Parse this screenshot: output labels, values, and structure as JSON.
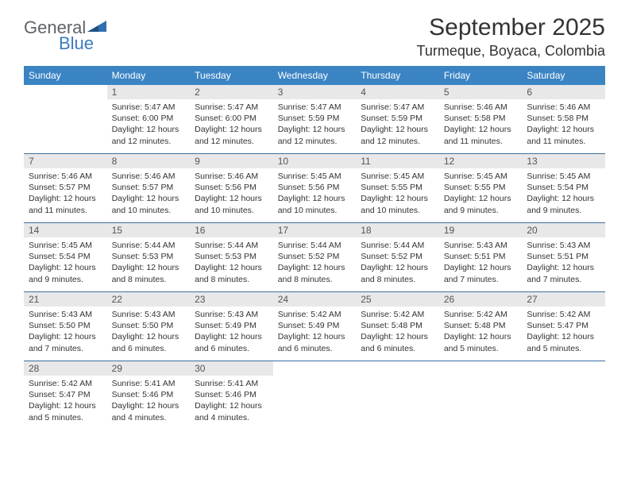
{
  "brand": {
    "word1": "General",
    "word2": "Blue"
  },
  "title": "September 2025",
  "location": "Turmeque, Boyaca, Colombia",
  "colors": {
    "header_bg": "#3b84c4",
    "header_text": "#ffffff",
    "row_divider": "#3b6fa0",
    "daynum_bg": "#e8e8e8",
    "text": "#333333",
    "brand_gray": "#5f6368",
    "brand_blue": "#3b7bbf"
  },
  "weekdays": [
    "Sunday",
    "Monday",
    "Tuesday",
    "Wednesday",
    "Thursday",
    "Friday",
    "Saturday"
  ],
  "first_weekday_index": 1,
  "days": [
    {
      "n": 1,
      "rise": "5:47 AM",
      "set": "6:00 PM",
      "dl": "12 hours and 12 minutes."
    },
    {
      "n": 2,
      "rise": "5:47 AM",
      "set": "6:00 PM",
      "dl": "12 hours and 12 minutes."
    },
    {
      "n": 3,
      "rise": "5:47 AM",
      "set": "5:59 PM",
      "dl": "12 hours and 12 minutes."
    },
    {
      "n": 4,
      "rise": "5:47 AM",
      "set": "5:59 PM",
      "dl": "12 hours and 12 minutes."
    },
    {
      "n": 5,
      "rise": "5:46 AM",
      "set": "5:58 PM",
      "dl": "12 hours and 11 minutes."
    },
    {
      "n": 6,
      "rise": "5:46 AM",
      "set": "5:58 PM",
      "dl": "12 hours and 11 minutes."
    },
    {
      "n": 7,
      "rise": "5:46 AM",
      "set": "5:57 PM",
      "dl": "12 hours and 11 minutes."
    },
    {
      "n": 8,
      "rise": "5:46 AM",
      "set": "5:57 PM",
      "dl": "12 hours and 10 minutes."
    },
    {
      "n": 9,
      "rise": "5:46 AM",
      "set": "5:56 PM",
      "dl": "12 hours and 10 minutes."
    },
    {
      "n": 10,
      "rise": "5:45 AM",
      "set": "5:56 PM",
      "dl": "12 hours and 10 minutes."
    },
    {
      "n": 11,
      "rise": "5:45 AM",
      "set": "5:55 PM",
      "dl": "12 hours and 10 minutes."
    },
    {
      "n": 12,
      "rise": "5:45 AM",
      "set": "5:55 PM",
      "dl": "12 hours and 9 minutes."
    },
    {
      "n": 13,
      "rise": "5:45 AM",
      "set": "5:54 PM",
      "dl": "12 hours and 9 minutes."
    },
    {
      "n": 14,
      "rise": "5:45 AM",
      "set": "5:54 PM",
      "dl": "12 hours and 9 minutes."
    },
    {
      "n": 15,
      "rise": "5:44 AM",
      "set": "5:53 PM",
      "dl": "12 hours and 8 minutes."
    },
    {
      "n": 16,
      "rise": "5:44 AM",
      "set": "5:53 PM",
      "dl": "12 hours and 8 minutes."
    },
    {
      "n": 17,
      "rise": "5:44 AM",
      "set": "5:52 PM",
      "dl": "12 hours and 8 minutes."
    },
    {
      "n": 18,
      "rise": "5:44 AM",
      "set": "5:52 PM",
      "dl": "12 hours and 8 minutes."
    },
    {
      "n": 19,
      "rise": "5:43 AM",
      "set": "5:51 PM",
      "dl": "12 hours and 7 minutes."
    },
    {
      "n": 20,
      "rise": "5:43 AM",
      "set": "5:51 PM",
      "dl": "12 hours and 7 minutes."
    },
    {
      "n": 21,
      "rise": "5:43 AM",
      "set": "5:50 PM",
      "dl": "12 hours and 7 minutes."
    },
    {
      "n": 22,
      "rise": "5:43 AM",
      "set": "5:50 PM",
      "dl": "12 hours and 6 minutes."
    },
    {
      "n": 23,
      "rise": "5:43 AM",
      "set": "5:49 PM",
      "dl": "12 hours and 6 minutes."
    },
    {
      "n": 24,
      "rise": "5:42 AM",
      "set": "5:49 PM",
      "dl": "12 hours and 6 minutes."
    },
    {
      "n": 25,
      "rise": "5:42 AM",
      "set": "5:48 PM",
      "dl": "12 hours and 6 minutes."
    },
    {
      "n": 26,
      "rise": "5:42 AM",
      "set": "5:48 PM",
      "dl": "12 hours and 5 minutes."
    },
    {
      "n": 27,
      "rise": "5:42 AM",
      "set": "5:47 PM",
      "dl": "12 hours and 5 minutes."
    },
    {
      "n": 28,
      "rise": "5:42 AM",
      "set": "5:47 PM",
      "dl": "12 hours and 5 minutes."
    },
    {
      "n": 29,
      "rise": "5:41 AM",
      "set": "5:46 PM",
      "dl": "12 hours and 4 minutes."
    },
    {
      "n": 30,
      "rise": "5:41 AM",
      "set": "5:46 PM",
      "dl": "12 hours and 4 minutes."
    }
  ],
  "labels": {
    "sunrise": "Sunrise:",
    "sunset": "Sunset:",
    "daylight": "Daylight:"
  }
}
